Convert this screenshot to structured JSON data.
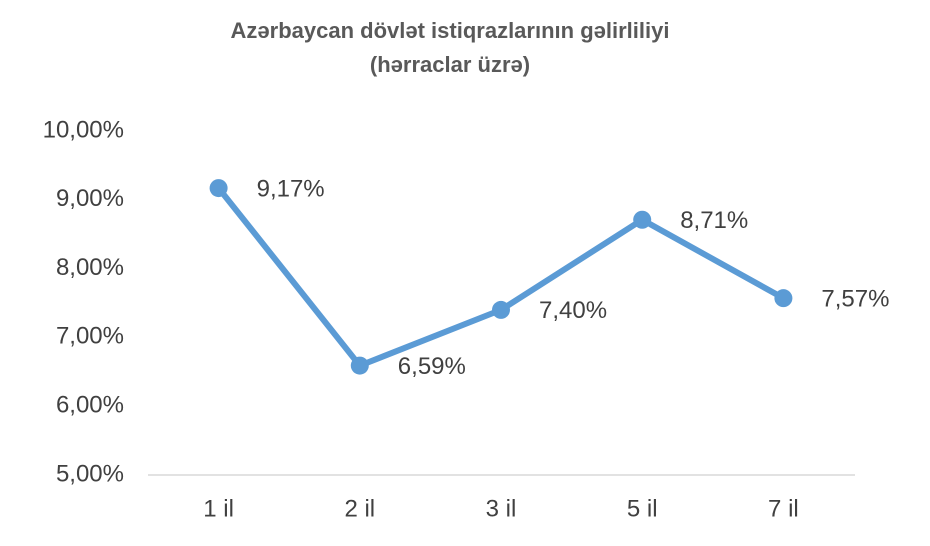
{
  "chart_data": {
    "type": "line",
    "title": [
      "Azərbaycan dövlət istiqrazlarının gəlirliliyi",
      "(hərraclar üzrə)"
    ],
    "categories": [
      "1 il",
      "2 il",
      "3 il",
      "5 il",
      "7 il"
    ],
    "series": [
      {
        "color": "#5b9bd5",
        "values": [
          9.17,
          6.59,
          7.4,
          8.71,
          7.57
        ],
        "value_labels": [
          "9,17%",
          "6,59%",
          "7,40%",
          "8,71%",
          "7,57%"
        ]
      }
    ],
    "ylim": [
      5,
      10
    ],
    "yticks": [
      {
        "value": 5,
        "label": "5,00%"
      },
      {
        "value": 6,
        "label": "6,00%"
      },
      {
        "value": 7,
        "label": "7,00%"
      },
      {
        "value": 8,
        "label": "8,00%"
      },
      {
        "value": 9,
        "label": "9,00%"
      },
      {
        "value": 10,
        "label": "10,00%"
      }
    ],
    "grid": false
  }
}
